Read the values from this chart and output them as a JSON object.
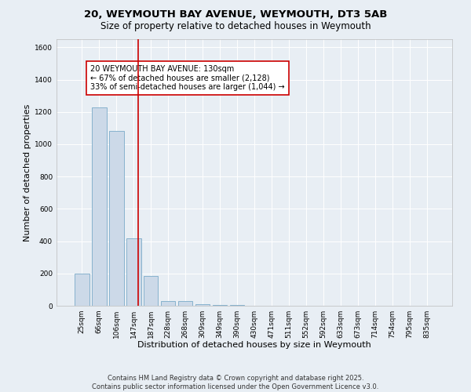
{
  "title_line1": "20, WEYMOUTH BAY AVENUE, WEYMOUTH, DT3 5AB",
  "title_line2": "Size of property relative to detached houses in Weymouth",
  "xlabel": "Distribution of detached houses by size in Weymouth",
  "ylabel": "Number of detached properties",
  "categories": [
    "25sqm",
    "66sqm",
    "106sqm",
    "147sqm",
    "187sqm",
    "228sqm",
    "268sqm",
    "309sqm",
    "349sqm",
    "390sqm",
    "430sqm",
    "471sqm",
    "511sqm",
    "552sqm",
    "592sqm",
    "633sqm",
    "673sqm",
    "714sqm",
    "754sqm",
    "795sqm",
    "835sqm"
  ],
  "values": [
    200,
    1230,
    1080,
    415,
    185,
    30,
    27,
    10,
    5,
    3,
    2,
    1,
    0,
    0,
    0,
    0,
    0,
    0,
    0,
    0,
    0
  ],
  "bar_color": "#ccd9e8",
  "bar_edge_color": "#7aaac8",
  "ylim": [
    0,
    1650
  ],
  "yticks": [
    0,
    200,
    400,
    600,
    800,
    1000,
    1200,
    1400,
    1600
  ],
  "vline_x": 3.28,
  "vline_color": "#cc0000",
  "annotation_text": "20 WEYMOUTH BAY AVENUE: 130sqm\n← 67% of detached houses are smaller (2,128)\n33% of semi-detached houses are larger (1,044) →",
  "annotation_box_color": "#cc0000",
  "background_color": "#e8eef4",
  "plot_bg_color": "#e8eef4",
  "footer_line1": "Contains HM Land Registry data © Crown copyright and database right 2025.",
  "footer_line2": "Contains public sector information licensed under the Open Government Licence v3.0.",
  "title_fontsize": 9.5,
  "subtitle_fontsize": 8.5,
  "xlabel_fontsize": 8,
  "ylabel_fontsize": 8,
  "tick_fontsize": 6.5,
  "footer_fontsize": 6,
  "annotation_fontsize": 7
}
